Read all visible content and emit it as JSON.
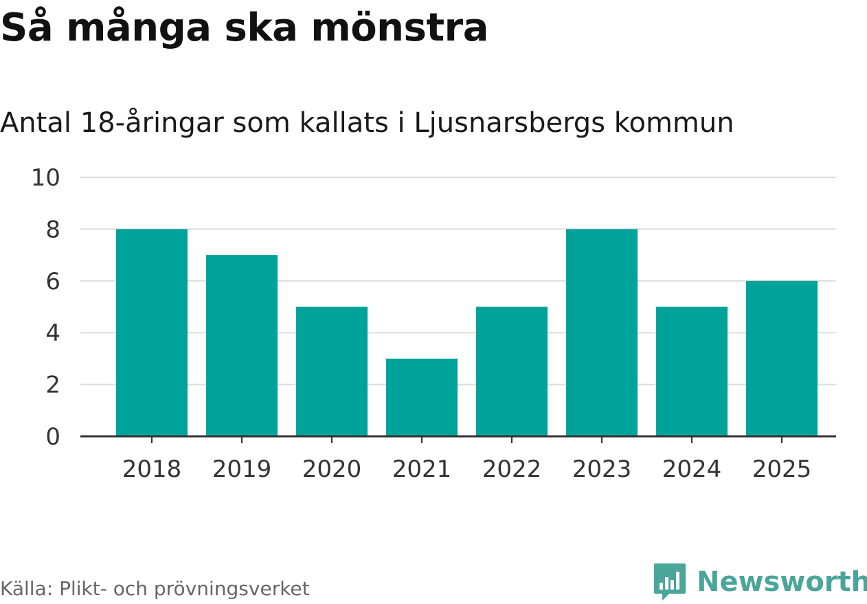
{
  "chart_data": {
    "type": "bar",
    "title": "Så många ska mönstra",
    "subtitle": "Antal 18-åringar som kallats i Ljusnarsbergs kommun",
    "categories": [
      "2018",
      "2019",
      "2020",
      "2021",
      "2022",
      "2023",
      "2024",
      "2025"
    ],
    "values": [
      8,
      7,
      5,
      3,
      5,
      8,
      5,
      6
    ],
    "ylim": [
      0,
      10
    ],
    "yticks": [
      0,
      2,
      4,
      6,
      8,
      10
    ],
    "xlabel": "",
    "ylabel": "",
    "grid": true,
    "bar_color": "#00a39a"
  },
  "footer": {
    "source": "Källa: Plikt- och prövningsverket",
    "brand": "Newsworthy"
  },
  "colors": {
    "brand": "#4aa59a",
    "grid": "#dddddd",
    "axis": "#333333"
  },
  "icons": {
    "brand_logo": "newsworthy-logo-icon"
  }
}
